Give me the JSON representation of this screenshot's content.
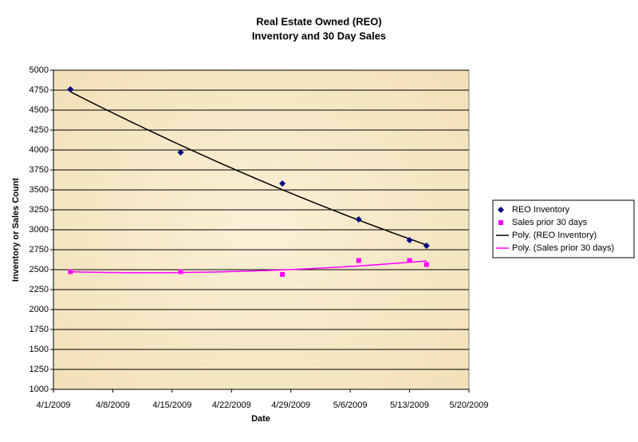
{
  "chart_data": {
    "type": "scatter",
    "title": "Real Estate Owned (REO)",
    "subtitle": "Inventory and 30 Day Sales",
    "x_label": "Date",
    "y_label": "Inventory or Sales Count",
    "xlim": [
      "4/1/2009",
      "5/20/2009"
    ],
    "xticks": [
      "4/1/2009",
      "4/8/2009",
      "4/15/2009",
      "4/22/2009",
      "4/29/2009",
      "5/6/2009",
      "5/13/2009",
      "5/20/2009"
    ],
    "ylim": [
      1000,
      5000
    ],
    "yticks": [
      1000,
      1250,
      1500,
      1750,
      2000,
      2250,
      2500,
      2750,
      3000,
      3250,
      3500,
      3750,
      4000,
      4250,
      4500,
      4750,
      5000
    ],
    "grid": true,
    "legend": "right",
    "series": [
      {
        "name": "REO Inventory",
        "color": "#000080",
        "marker": "diamond",
        "x": [
          "4/3/2009",
          "4/16/2009",
          "4/28/2009",
          "5/7/2009",
          "5/13/2009",
          "5/15/2009"
        ],
        "values": [
          4760,
          3970,
          3580,
          3130,
          2870,
          2800
        ],
        "trendline": {
          "name": "Poly. (REO Inventory)",
          "color": "#000000",
          "order": 2
        }
      },
      {
        "name": "Sales prior 30 days",
        "color": "#ff00ff",
        "marker": "square",
        "x": [
          "4/3/2009",
          "4/16/2009",
          "4/28/2009",
          "5/7/2009",
          "5/13/2009",
          "5/15/2009"
        ],
        "values": [
          2475,
          2475,
          2440,
          2615,
          2615,
          2565
        ],
        "trendline": {
          "name": "Poly. (Sales prior 30 days)",
          "color": "#ff00ff",
          "order": 2
        }
      }
    ]
  }
}
